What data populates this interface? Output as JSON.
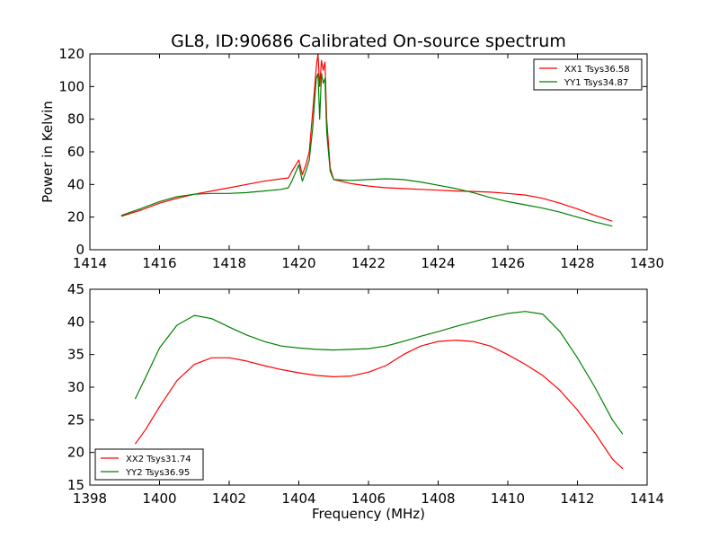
{
  "title": "GL8, ID:90686 Calibrated On-source spectrum",
  "colors": {
    "xx": "#ff0000",
    "yy": "#008000",
    "frame": "#000000",
    "background": "#ffffff"
  },
  "chart_data": [
    {
      "type": "line",
      "ylabel": "Power in Kelvin",
      "xlabel": "",
      "xlim": [
        1414,
        1430
      ],
      "ylim": [
        0,
        120
      ],
      "xticks": [
        "1414",
        "1416",
        "1418",
        "1420",
        "1422",
        "1424",
        "1426",
        "1428",
        "1430"
      ],
      "yticks": [
        "0",
        "20",
        "40",
        "60",
        "80",
        "100",
        "120"
      ],
      "grid": false,
      "legend_position": "top-right",
      "series": [
        {
          "name": "XX1 Tsys36.58",
          "color": "#ff0000",
          "x": [
            1414.9,
            1415.5,
            1416.0,
            1416.5,
            1417.0,
            1417.5,
            1418.0,
            1418.5,
            1419.0,
            1419.5,
            1419.7,
            1419.8,
            1420.0,
            1420.1,
            1420.2,
            1420.3,
            1420.4,
            1420.5,
            1420.55,
            1420.6,
            1420.65,
            1420.7,
            1420.75,
            1420.8,
            1420.9,
            1421.0,
            1421.5,
            1422.0,
            1422.5,
            1423.0,
            1423.5,
            1424.0,
            1424.5,
            1425.0,
            1425.5,
            1426.0,
            1426.5,
            1427.0,
            1427.5,
            1428.0,
            1428.5,
            1429.0
          ],
          "y": [
            20.5,
            24.5,
            28.5,
            31.5,
            34.0,
            36.0,
            38.0,
            40.0,
            42.0,
            43.5,
            44.0,
            48.0,
            55.0,
            46.0,
            52.0,
            60.0,
            85.0,
            112.0,
            120.0,
            100.0,
            116.0,
            110.0,
            115.0,
            80.0,
            50.0,
            43.0,
            40.5,
            39.0,
            38.0,
            37.5,
            37.0,
            36.5,
            36.0,
            35.7,
            35.3,
            34.5,
            33.5,
            31.5,
            28.5,
            25.0,
            21.0,
            17.5
          ]
        },
        {
          "name": "YY1 Tsys34.87",
          "color": "#008000",
          "x": [
            1414.9,
            1415.5,
            1416.0,
            1416.5,
            1417.0,
            1417.5,
            1418.0,
            1418.5,
            1419.0,
            1419.5,
            1419.7,
            1419.8,
            1420.0,
            1420.1,
            1420.2,
            1420.3,
            1420.4,
            1420.5,
            1420.55,
            1420.6,
            1420.65,
            1420.7,
            1420.75,
            1420.8,
            1420.9,
            1421.0,
            1421.5,
            1422.0,
            1422.5,
            1423.0,
            1423.5,
            1424.0,
            1424.5,
            1425.0,
            1425.5,
            1426.0,
            1426.5,
            1427.0,
            1427.5,
            1428.0,
            1428.5,
            1429.0
          ],
          "y": [
            21.0,
            25.5,
            29.5,
            32.5,
            34.0,
            34.5,
            34.5,
            35.0,
            36.0,
            37.0,
            38.0,
            42.0,
            52.0,
            42.0,
            48.0,
            55.0,
            75.0,
            105.0,
            108.0,
            80.0,
            108.0,
            102.0,
            105.0,
            72.0,
            48.0,
            43.0,
            42.5,
            43.0,
            43.5,
            43.0,
            41.5,
            39.5,
            37.5,
            35.0,
            32.0,
            29.5,
            27.5,
            25.5,
            23.0,
            20.0,
            17.0,
            14.5
          ]
        }
      ]
    },
    {
      "type": "line",
      "xlabel": "Frequency (MHz)",
      "ylabel": "",
      "xlim": [
        1398,
        1414
      ],
      "ylim": [
        15,
        45
      ],
      "xticks": [
        "1398",
        "1400",
        "1402",
        "1404",
        "1406",
        "1408",
        "1410",
        "1412",
        "1414"
      ],
      "yticks": [
        "15",
        "20",
        "25",
        "30",
        "35",
        "40",
        "45"
      ],
      "grid": false,
      "legend_position": "bottom-left",
      "series": [
        {
          "name": "XX2 Tsys31.74",
          "color": "#ff0000",
          "x": [
            1399.3,
            1399.6,
            1400.0,
            1400.5,
            1401.0,
            1401.5,
            1402.0,
            1402.5,
            1403.0,
            1403.5,
            1404.0,
            1404.5,
            1405.0,
            1405.5,
            1406.0,
            1406.5,
            1407.0,
            1407.5,
            1408.0,
            1408.5,
            1409.0,
            1409.5,
            1410.0,
            1410.5,
            1411.0,
            1411.5,
            1412.0,
            1412.5,
            1413.0,
            1413.3
          ],
          "y": [
            21.3,
            23.5,
            27.0,
            31.0,
            33.5,
            34.5,
            34.5,
            34.0,
            33.3,
            32.7,
            32.2,
            31.8,
            31.6,
            31.7,
            32.3,
            33.3,
            35.0,
            36.3,
            37.0,
            37.2,
            37.0,
            36.3,
            35.0,
            33.5,
            31.8,
            29.5,
            26.5,
            23.0,
            19.0,
            17.5
          ]
        },
        {
          "name": "YY2 Tsys36.95",
          "color": "#008000",
          "x": [
            1399.3,
            1399.6,
            1400.0,
            1400.5,
            1401.0,
            1401.5,
            1402.0,
            1402.5,
            1403.0,
            1403.5,
            1404.0,
            1404.5,
            1405.0,
            1405.5,
            1406.0,
            1406.5,
            1407.0,
            1407.5,
            1408.0,
            1408.5,
            1409.0,
            1409.5,
            1410.0,
            1410.5,
            1411.0,
            1411.5,
            1412.0,
            1412.5,
            1413.0,
            1413.3
          ],
          "y": [
            28.2,
            31.5,
            36.0,
            39.5,
            41.0,
            40.5,
            39.2,
            38.0,
            37.0,
            36.3,
            36.0,
            35.8,
            35.7,
            35.8,
            35.9,
            36.3,
            37.0,
            37.8,
            38.5,
            39.3,
            40.0,
            40.7,
            41.3,
            41.6,
            41.2,
            38.5,
            34.5,
            30.0,
            25.0,
            22.8
          ]
        }
      ]
    }
  ]
}
